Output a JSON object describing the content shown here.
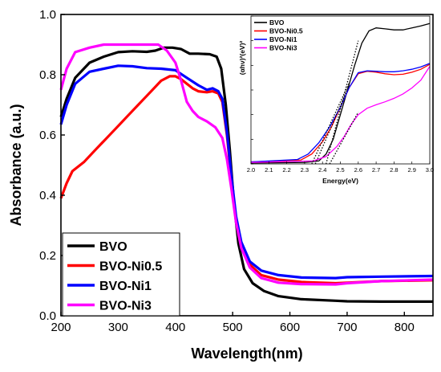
{
  "chart_data": [
    {
      "type": "line",
      "xlabel": "Wavelength(nm)",
      "ylabel": "Absorbance (a.u.)",
      "xlim": [
        200,
        850
      ],
      "ylim": [
        0.0,
        1.0
      ],
      "x_ticks": [
        200,
        300,
        400,
        500,
        600,
        700,
        800
      ],
      "y_ticks": [
        0.0,
        0.2,
        0.4,
        0.6,
        0.8,
        1.0
      ],
      "x_tick_labels": [
        "200",
        "300",
        "400",
        "500",
        "600",
        "700",
        "800"
      ],
      "y_tick_labels": [
        "0.0",
        "0.2",
        "0.4",
        "0.6",
        "0.8",
        "1.0"
      ],
      "grid": false,
      "legend_position": "bottom-left",
      "series": [
        {
          "name": "BVO",
          "color": "#000000",
          "points": [
            [
              200,
              0.66
            ],
            [
              210,
              0.72
            ],
            [
              225,
              0.79
            ],
            [
              250,
              0.84
            ],
            [
              275,
              0.86
            ],
            [
              300,
              0.875
            ],
            [
              325,
              0.878
            ],
            [
              350,
              0.876
            ],
            [
              365,
              0.88
            ],
            [
              380,
              0.89
            ],
            [
              395,
              0.89
            ],
            [
              410,
              0.885
            ],
            [
              425,
              0.87
            ],
            [
              440,
              0.87
            ],
            [
              460,
              0.868
            ],
            [
              472,
              0.86
            ],
            [
              480,
              0.82
            ],
            [
              488,
              0.7
            ],
            [
              495,
              0.55
            ],
            [
              502,
              0.38
            ],
            [
              510,
              0.24
            ],
            [
              520,
              0.155
            ],
            [
              535,
              0.108
            ],
            [
              555,
              0.082
            ],
            [
              580,
              0.065
            ],
            [
              620,
              0.055
            ],
            [
              680,
              0.05
            ],
            [
              700,
              0.048
            ],
            [
              760,
              0.047
            ],
            [
              850,
              0.047
            ]
          ]
        },
        {
          "name": "BVO-Ni0.5",
          "color": "#ff0000",
          "points": [
            [
              200,
              0.39
            ],
            [
              210,
              0.44
            ],
            [
              220,
              0.48
            ],
            [
              240,
              0.51
            ],
            [
              260,
              0.55
            ],
            [
              280,
              0.59
            ],
            [
              300,
              0.63
            ],
            [
              320,
              0.67
            ],
            [
              340,
              0.71
            ],
            [
              360,
              0.75
            ],
            [
              375,
              0.78
            ],
            [
              390,
              0.795
            ],
            [
              400,
              0.795
            ],
            [
              410,
              0.785
            ],
            [
              420,
              0.77
            ],
            [
              430,
              0.755
            ],
            [
              440,
              0.745
            ],
            [
              455,
              0.742
            ],
            [
              465,
              0.745
            ],
            [
              475,
              0.738
            ],
            [
              482,
              0.71
            ],
            [
              490,
              0.6
            ],
            [
              498,
              0.45
            ],
            [
              506,
              0.32
            ],
            [
              515,
              0.235
            ],
            [
              530,
              0.17
            ],
            [
              550,
              0.135
            ],
            [
              580,
              0.12
            ],
            [
              620,
              0.112
            ],
            [
              680,
              0.108
            ],
            [
              700,
              0.11
            ],
            [
              760,
              0.115
            ],
            [
              850,
              0.118
            ]
          ]
        },
        {
          "name": "BVO-Ni1",
          "color": "#0000ff",
          "points": [
            [
              200,
              0.635
            ],
            [
              210,
              0.7
            ],
            [
              225,
              0.77
            ],
            [
              250,
              0.81
            ],
            [
              275,
              0.82
            ],
            [
              300,
              0.83
            ],
            [
              325,
              0.828
            ],
            [
              350,
              0.822
            ],
            [
              375,
              0.82
            ],
            [
              400,
              0.815
            ],
            [
              420,
              0.79
            ],
            [
              440,
              0.765
            ],
            [
              455,
              0.75
            ],
            [
              465,
              0.755
            ],
            [
              475,
              0.745
            ],
            [
              482,
              0.72
            ],
            [
              490,
              0.61
            ],
            [
              498,
              0.46
            ],
            [
              506,
              0.33
            ],
            [
              515,
              0.245
            ],
            [
              530,
              0.18
            ],
            [
              550,
              0.15
            ],
            [
              580,
              0.135
            ],
            [
              620,
              0.127
            ],
            [
              680,
              0.125
            ],
            [
              700,
              0.128
            ],
            [
              760,
              0.13
            ],
            [
              850,
              0.132
            ]
          ]
        },
        {
          "name": "BVO-Ni3",
          "color": "#ff00ff",
          "points": [
            [
              200,
              0.75
            ],
            [
              210,
              0.82
            ],
            [
              225,
              0.875
            ],
            [
              250,
              0.89
            ],
            [
              275,
              0.9
            ],
            [
              300,
              0.9
            ],
            [
              325,
              0.9
            ],
            [
              350,
              0.9
            ],
            [
              370,
              0.9
            ],
            [
              385,
              0.88
            ],
            [
              400,
              0.84
            ],
            [
              410,
              0.78
            ],
            [
              420,
              0.71
            ],
            [
              430,
              0.68
            ],
            [
              440,
              0.66
            ],
            [
              455,
              0.645
            ],
            [
              470,
              0.625
            ],
            [
              482,
              0.59
            ],
            [
              490,
              0.52
            ],
            [
              498,
              0.42
            ],
            [
              506,
              0.31
            ],
            [
              515,
              0.225
            ],
            [
              530,
              0.16
            ],
            [
              550,
              0.125
            ],
            [
              580,
              0.11
            ],
            [
              620,
              0.105
            ],
            [
              680,
              0.104
            ],
            [
              700,
              0.108
            ],
            [
              760,
              0.115
            ],
            [
              850,
              0.12
            ]
          ]
        }
      ]
    },
    {
      "type": "line",
      "xlabel": "Energy(eV)",
      "ylabel": "(αhν)²(eV)²",
      "xlim": [
        2.0,
        3.0
      ],
      "ylim": [
        0,
        3
      ],
      "x_ticks": [
        2.0,
        2.1,
        2.2,
        2.3,
        2.4,
        2.5,
        2.6,
        2.7,
        2.8,
        2.9,
        3.0
      ],
      "y_ticks": [
        0,
        0.5,
        1.0,
        1.5,
        2.0,
        2.5,
        3.0
      ],
      "x_tick_labels": [
        "2.0",
        "2.1",
        "2.2",
        "2.3",
        "2.4",
        "2.5",
        "2.6",
        "2.7",
        "2.8",
        "2.9",
        "3.0"
      ],
      "y_tick_labels": [
        "0.0",
        "0.5",
        "1.0",
        "1.5",
        "2.0",
        "2.5",
        "3.0"
      ],
      "grid": false,
      "legend_position": "top-left",
      "series": [
        {
          "name": "BVO",
          "color": "#000000",
          "points": [
            [
              2.0,
              0.02
            ],
            [
              2.3,
              0.03
            ],
            [
              2.38,
              0.06
            ],
            [
              2.42,
              0.2
            ],
            [
              2.46,
              0.5
            ],
            [
              2.5,
              1.0
            ],
            [
              2.54,
              1.5
            ],
            [
              2.58,
              2.0
            ],
            [
              2.62,
              2.45
            ],
            [
              2.66,
              2.7
            ],
            [
              2.7,
              2.76
            ],
            [
              2.75,
              2.74
            ],
            [
              2.8,
              2.72
            ],
            [
              2.85,
              2.72
            ],
            [
              2.9,
              2.76
            ],
            [
              2.95,
              2.8
            ],
            [
              3.0,
              2.85
            ]
          ]
        },
        {
          "name": "BVO-Ni0.5",
          "color": "#ff0000",
          "points": [
            [
              2.0,
              0.04
            ],
            [
              2.28,
              0.08
            ],
            [
              2.34,
              0.2
            ],
            [
              2.4,
              0.45
            ],
            [
              2.45,
              0.75
            ],
            [
              2.5,
              1.15
            ],
            [
              2.55,
              1.55
            ],
            [
              2.6,
              1.83
            ],
            [
              2.65,
              1.88
            ],
            [
              2.7,
              1.86
            ],
            [
              2.75,
              1.83
            ],
            [
              2.8,
              1.81
            ],
            [
              2.85,
              1.82
            ],
            [
              2.9,
              1.86
            ],
            [
              2.95,
              1.92
            ],
            [
              3.0,
              2.02
            ]
          ]
        },
        {
          "name": "BVO-Ni1",
          "color": "#0000ff",
          "points": [
            [
              2.0,
              0.04
            ],
            [
              2.26,
              0.09
            ],
            [
              2.32,
              0.2
            ],
            [
              2.38,
              0.43
            ],
            [
              2.44,
              0.75
            ],
            [
              2.5,
              1.15
            ],
            [
              2.55,
              1.55
            ],
            [
              2.6,
              1.85
            ],
            [
              2.65,
              1.89
            ],
            [
              2.7,
              1.88
            ],
            [
              2.75,
              1.87
            ],
            [
              2.8,
              1.87
            ],
            [
              2.85,
              1.89
            ],
            [
              2.9,
              1.92
            ],
            [
              2.95,
              1.97
            ],
            [
              3.0,
              2.04
            ]
          ]
        },
        {
          "name": "BVO-Ni3",
          "color": "#ff00ff",
          "points": [
            [
              2.0,
              0.03
            ],
            [
              2.35,
              0.06
            ],
            [
              2.42,
              0.15
            ],
            [
              2.48,
              0.35
            ],
            [
              2.52,
              0.55
            ],
            [
              2.56,
              0.8
            ],
            [
              2.6,
              1.0
            ],
            [
              2.65,
              1.13
            ],
            [
              2.7,
              1.2
            ],
            [
              2.75,
              1.26
            ],
            [
              2.8,
              1.33
            ],
            [
              2.85,
              1.42
            ],
            [
              2.9,
              1.54
            ],
            [
              2.95,
              1.7
            ],
            [
              3.0,
              1.98
            ]
          ]
        }
      ],
      "fit_lines": [
        {
          "color": "#000000",
          "points": [
            [
              2.42,
              0.0
            ],
            [
              2.6,
              2.5
            ]
          ]
        },
        {
          "color": "#000000",
          "points": [
            [
              2.36,
              0.0
            ],
            [
              2.55,
              1.6
            ]
          ]
        },
        {
          "color": "#000000",
          "points": [
            [
              2.34,
              0.0
            ],
            [
              2.55,
              1.65
            ]
          ]
        },
        {
          "color": "#000000",
          "points": [
            [
              2.44,
              0.0
            ],
            [
              2.6,
              1.05
            ]
          ]
        }
      ]
    }
  ]
}
